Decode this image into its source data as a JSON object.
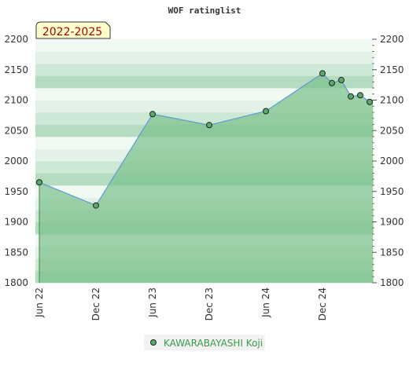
{
  "chart_data": {
    "type": "area",
    "title": "WOF ratinglist",
    "badge": "2022-2025",
    "x": [
      "2022-06",
      "2022-12",
      "2023-06",
      "2023-12",
      "2024-06",
      "2024-12",
      "2025-01",
      "2025-02",
      "2025-03",
      "2025-04",
      "2025-05"
    ],
    "x_tick_labels": [
      "Jun 22",
      "Dec 22",
      "Jun 23",
      "Dec 23",
      "Jun 24",
      "Dec 24"
    ],
    "x_tick_dates": [
      "2022-06",
      "2022-12",
      "2023-06",
      "2023-12",
      "2024-06",
      "2024-12"
    ],
    "ylim": [
      1800,
      2200
    ],
    "y_ticks": [
      1800,
      1850,
      1900,
      1950,
      2000,
      2050,
      2100,
      2150,
      2200
    ],
    "series": [
      {
        "name": "KAWARABAYASHI Koji",
        "values": [
          1965,
          1927,
          2077,
          2059,
          2082,
          2144,
          2128,
          2133,
          2106,
          2108,
          2097
        ]
      }
    ],
    "legend_placement": "bottom-center",
    "colors": {
      "line": "#5b9bd5",
      "area": "#7cc08c",
      "marker": "#4a9a5a",
      "badge_bg": "#ffffcc"
    }
  }
}
